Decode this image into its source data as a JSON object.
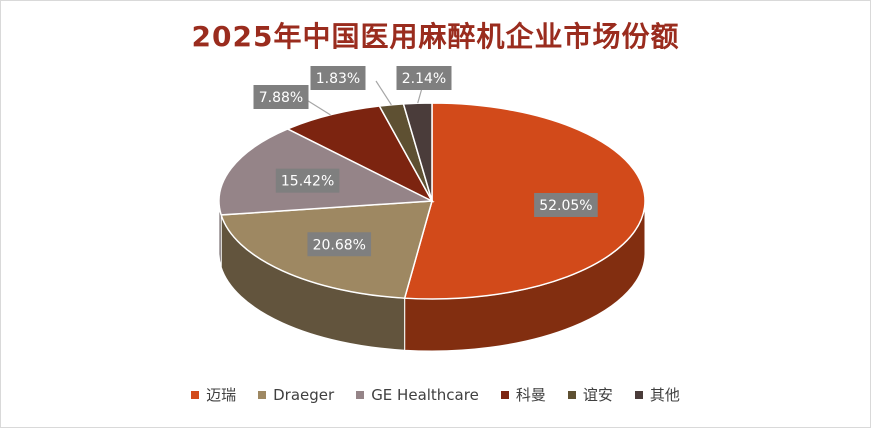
{
  "chart_data": {
    "type": "pie",
    "title": "2025年中国医用麻醉机企业市场份额",
    "categories": [
      "迈瑞",
      "Draeger",
      "GE Healthcare",
      "科曼",
      "谊安",
      "其他"
    ],
    "values": [
      52.05,
      20.68,
      15.42,
      7.88,
      1.83,
      2.14
    ],
    "labels": [
      "52.05%",
      "20.68%",
      "15.42%",
      "7.88%",
      "1.83%",
      "2.14%"
    ],
    "colors": [
      "#d24a1a",
      "#9e8862",
      "#958488",
      "#7c2410",
      "#5e5032",
      "#4a3c3a"
    ],
    "legend_position": "bottom",
    "style": "3d"
  }
}
